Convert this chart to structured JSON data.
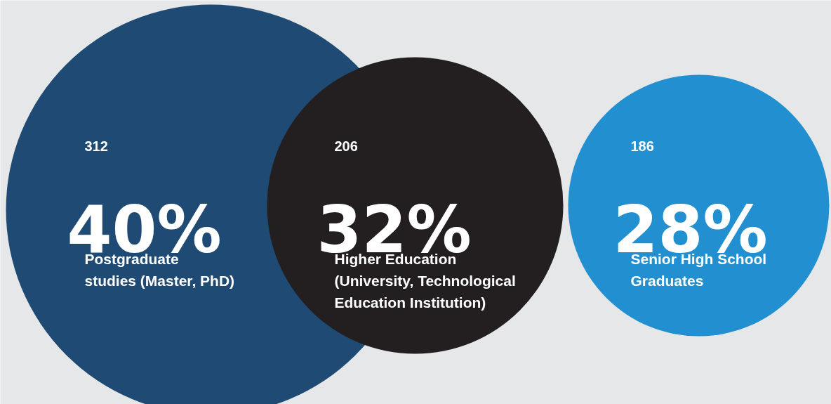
{
  "chart_data": {
    "type": "other",
    "categories": [
      "Postgraduate\nstudies (Master, PhD)",
      "Higher Education\n(University, Technological\nEducation Institution)",
      "Senior High School\nGraduates"
    ],
    "values": [
      312,
      206,
      186
    ],
    "data_labels": true,
    "annotations": [
      "40%",
      "32%",
      "28%"
    ],
    "colors": [
      "#1f4a73",
      "#231f20",
      "#2290d0"
    ]
  }
}
